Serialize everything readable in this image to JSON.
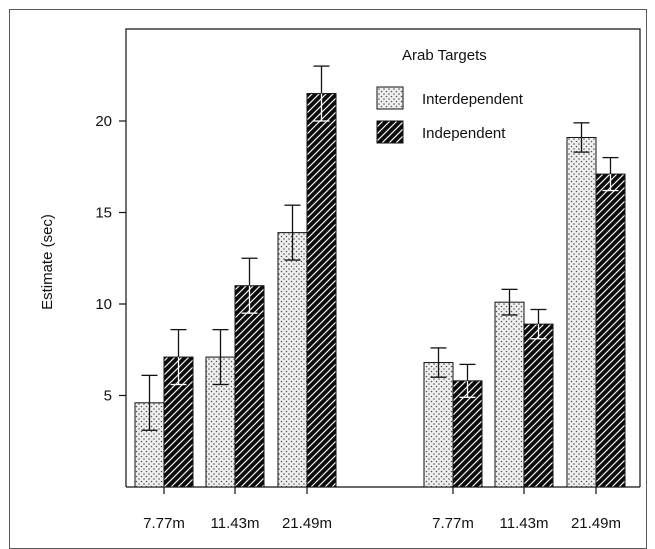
{
  "chart_data": {
    "type": "bar",
    "title": "",
    "xlabel": "",
    "ylabel": "Estimate (sec)",
    "ylim": [
      0,
      25
    ],
    "yticks": [
      5,
      10,
      15,
      20
    ],
    "legend": {
      "title": "Arab Targets",
      "placement": "top-right"
    },
    "groups": [
      {
        "categories": [
          "7.77m",
          "11.43m",
          "21.49m"
        ],
        "series": [
          {
            "name": "Interdependent",
            "values": [
              4.6,
              7.1,
              13.9
            ],
            "error": [
              1.5,
              1.5,
              1.5
            ]
          },
          {
            "name": "Independent",
            "values": [
              7.1,
              11.0,
              21.5
            ],
            "error": [
              1.5,
              1.5,
              1.5
            ]
          }
        ]
      },
      {
        "categories": [
          "7.77m",
          "11.43m",
          "21.49m"
        ],
        "series": [
          {
            "name": "Interdependent",
            "values": [
              6.8,
              10.1,
              19.1
            ],
            "error": [
              0.8,
              0.7,
              0.8
            ]
          },
          {
            "name": "Independent",
            "values": [
              5.8,
              8.9,
              17.1
            ],
            "error": [
              0.9,
              0.8,
              0.9
            ]
          }
        ]
      }
    ],
    "grid": false
  }
}
